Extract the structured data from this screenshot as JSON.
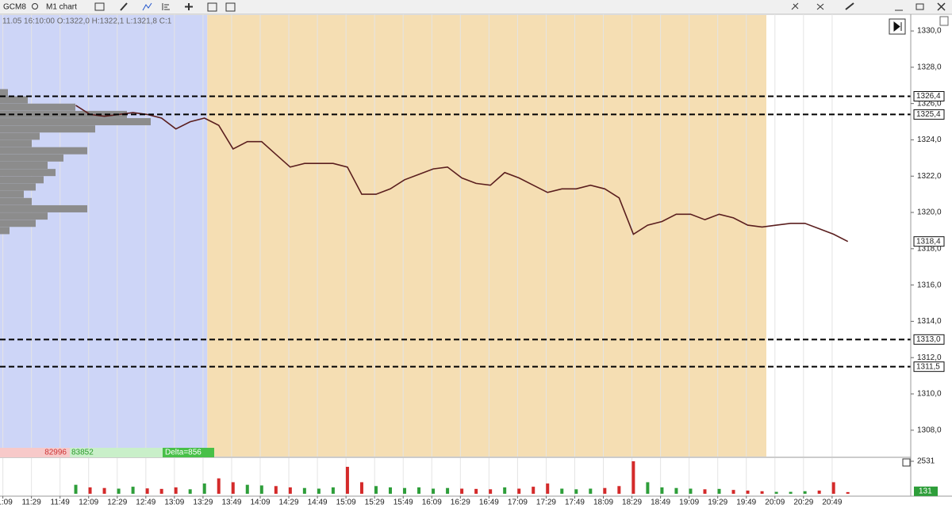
{
  "toolbar": {
    "symbol": "GCM8",
    "timeframe": "M1 chart"
  },
  "chart_data": {
    "type": "line",
    "info": "11.05 16:10:00  O:1322,0  H:1322,1  L:1321,8  C:1",
    "x": [
      "12:00",
      "12:10",
      "12:20",
      "12:30",
      "12:40",
      "12:50",
      "13:00",
      "13:10",
      "13:20",
      "13:30",
      "13:40",
      "13:50",
      "14:00",
      "14:10",
      "14:20",
      "14:30",
      "14:40",
      "14:50",
      "15:00",
      "15:10",
      "15:20",
      "15:30",
      "15:40",
      "15:50",
      "16:00",
      "16:10",
      "16:20",
      "16:30",
      "16:40",
      "16:50",
      "17:00",
      "17:10",
      "17:20",
      "17:30",
      "17:40",
      "17:50",
      "18:00",
      "18:10",
      "18:20",
      "18:30",
      "18:40",
      "18:50",
      "19:00",
      "19:10",
      "19:20",
      "19:30",
      "19:40",
      "19:50",
      "20:00",
      "20:10",
      "20:20",
      "20:30",
      "20:40",
      "20:50",
      "21:00"
    ],
    "values": [
      1325.9,
      1325.4,
      1325.3,
      1325.4,
      1325.5,
      1325.4,
      1325.2,
      1324.6,
      1325.0,
      1325.2,
      1324.8,
      1323.5,
      1323.9,
      1323.9,
      1323.2,
      1322.5,
      1322.7,
      1322.7,
      1322.7,
      1322.5,
      1321.0,
      1321.0,
      1321.3,
      1321.8,
      1322.1,
      1322.4,
      1322.5,
      1321.9,
      1321.6,
      1321.5,
      1322.2,
      1321.9,
      1321.5,
      1321.1,
      1321.3,
      1321.3,
      1321.5,
      1321.3,
      1320.8,
      1318.8,
      1319.3,
      1319.5,
      1319.9,
      1319.9,
      1319.6,
      1319.9,
      1319.7,
      1319.3,
      1319.2,
      1319.3,
      1319.4,
      1319.4,
      1319.1,
      1318.8,
      1318.4
    ],
    "color": "#5a1e1e",
    "xlim": [
      "11:07",
      "21:44"
    ],
    "xticks": [
      "11:09",
      "11:29",
      "11:49",
      "12:09",
      "12:29",
      "12:49",
      "13:09",
      "13:29",
      "13:49",
      "14:09",
      "14:29",
      "14:49",
      "15:09",
      "15:29",
      "15:49",
      "16:09",
      "16:29",
      "16:49",
      "17:09",
      "17:29",
      "17:49",
      "18:09",
      "18:29",
      "18:49",
      "19:09",
      "19:29",
      "19:49",
      "20:09",
      "20:29",
      "20:49"
    ],
    "ylim": [
      1306.55,
      1330.92
    ],
    "yticks": [
      {
        "value": 1308,
        "label": "1308,0"
      },
      {
        "value": 1310,
        "label": "1310,0"
      },
      {
        "value": 1312,
        "label": "1312,0"
      },
      {
        "value": 1314,
        "label": "1314,0"
      },
      {
        "value": 1316,
        "label": "1316,0"
      },
      {
        "value": 1318,
        "label": "1318,0"
      },
      {
        "value": 1320,
        "label": "1320,0"
      },
      {
        "value": 1322,
        "label": "1322,0"
      },
      {
        "value": 1324,
        "label": "1324,0"
      },
      {
        "value": 1326,
        "label": "1326,0"
      },
      {
        "value": 1328,
        "label": "1328,0"
      },
      {
        "value": 1330,
        "label": "1330,0"
      }
    ],
    "grid": true,
    "levels": [
      {
        "value": 1326.4,
        "label": "1326,4"
      },
      {
        "value": 1325.4,
        "label": "1325,4"
      },
      {
        "value": 1313.0,
        "label": "1313,0"
      },
      {
        "value": 1311.5,
        "label": "1311,5"
      }
    ],
    "last_price": {
      "value": 1318.4,
      "label": "1318,4"
    },
    "sessions": [
      {
        "start": "11:07",
        "end": "13:32",
        "color": "#cdd5f7"
      },
      {
        "start": "13:32",
        "end": "20:03",
        "color": "#f5deb3"
      }
    ],
    "profile": {
      "color": "#8c8c8c",
      "prices": [
        1326.6,
        1326.2,
        1325.8,
        1325.4,
        1325.0,
        1324.6,
        1324.2,
        1323.8,
        1323.4,
        1323.0,
        1322.6,
        1322.2,
        1321.8,
        1321.4,
        1321.0,
        1320.6,
        1320.2,
        1319.8,
        1319.4,
        1319.0
      ],
      "sizes": [
        10,
        35,
        95,
        160,
        190,
        120,
        50,
        40,
        110,
        80,
        60,
        70,
        55,
        45,
        30,
        40,
        110,
        60,
        45,
        12
      ]
    },
    "volume": {
      "values": [
        700,
        500,
        450,
        400,
        550,
        420,
        380,
        500,
        350,
        800,
        1200,
        900,
        700,
        650,
        600,
        500,
        450,
        400,
        500,
        2100,
        900,
        600,
        500,
        450,
        500,
        400,
        450,
        400,
        380,
        350,
        500,
        400,
        550,
        800,
        400,
        350,
        400,
        450,
        600,
        2531,
        900,
        500,
        450,
        400,
        350,
        380,
        300,
        250,
        200,
        150,
        150,
        200,
        250,
        900,
        131
      ],
      "ylim": [
        0,
        2531
      ],
      "yticks": [
        2531
      ],
      "up_color": "#2e9e3a",
      "down_color": "#d42a2a"
    },
    "delta": {
      "sell": 82996,
      "buy": 83852,
      "label": "Delta=856"
    }
  }
}
